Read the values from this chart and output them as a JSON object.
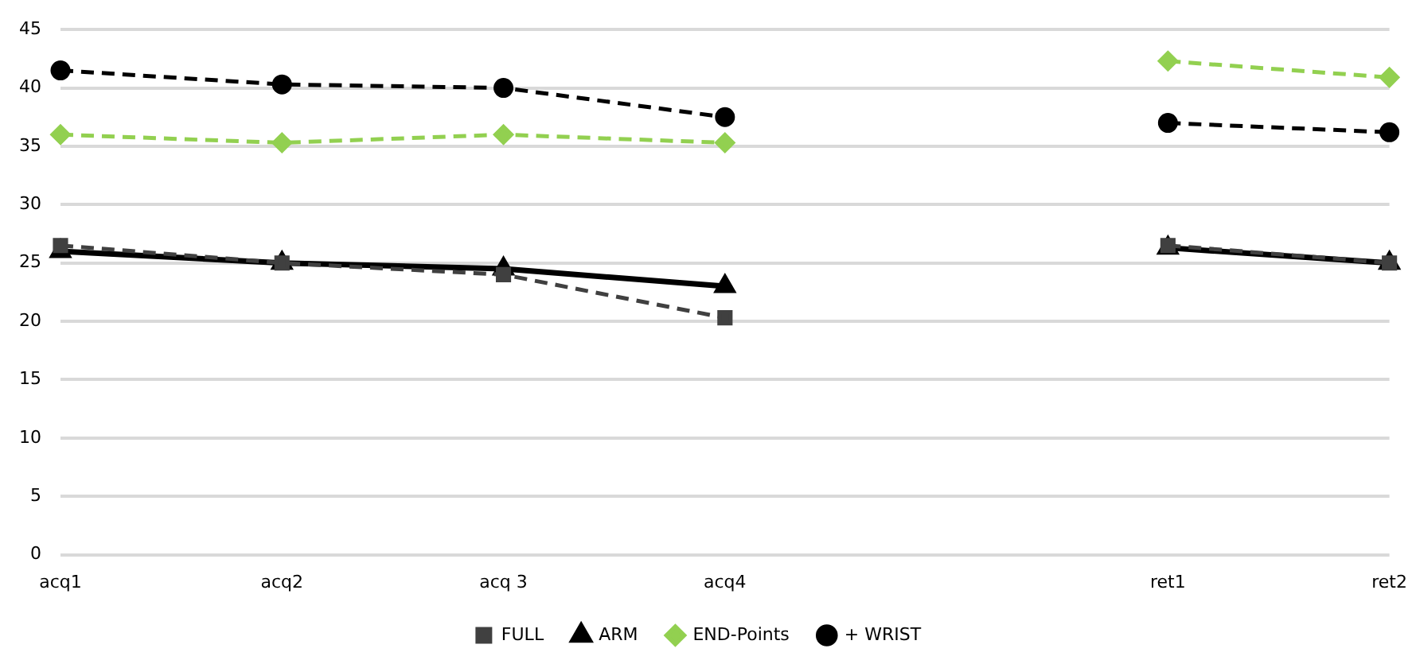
{
  "chart_data": {
    "type": "line",
    "categories": [
      "acq1",
      "acq2",
      "acq 3",
      "acq4",
      null,
      "ret1",
      "ret2"
    ],
    "series": [
      {
        "name": "FULL",
        "color": "#404040",
        "marker": "square",
        "line_style": "dashed",
        "values": [
          26.5,
          25,
          24,
          20.3,
          null,
          26.5,
          25
        ]
      },
      {
        "name": "ARM",
        "color": "#000000",
        "marker": "triangle",
        "line_style": "solid",
        "values": [
          26,
          25,
          24.5,
          23,
          null,
          26.3,
          25
        ]
      },
      {
        "name": "END-Points",
        "color": "#92d050",
        "marker": "diamond",
        "line_style": "dashed",
        "values": [
          36,
          35.3,
          36,
          35.3,
          null,
          42.3,
          40.9
        ]
      },
      {
        "name": "+ WRIST",
        "color": "#000000",
        "marker": "circle",
        "line_style": "dashed",
        "values": [
          41.5,
          40.3,
          40,
          37.5,
          null,
          37,
          36.2
        ]
      }
    ],
    "ylim": [
      0,
      45
    ],
    "yticks": [
      0,
      5,
      10,
      15,
      20,
      25,
      30,
      35,
      40,
      45
    ],
    "grid": "y",
    "legend": "bottom"
  }
}
